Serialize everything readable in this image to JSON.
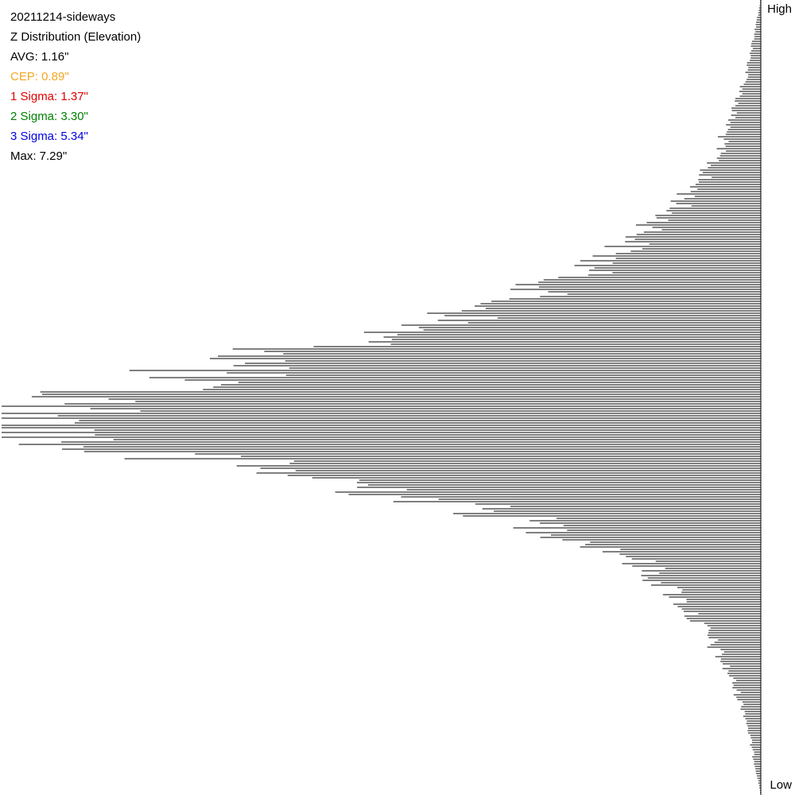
{
  "stats": {
    "title": "20211214-sideways",
    "subtitle": "Z Distribution (Elevation)",
    "avg": "AVG: 1.16\"",
    "cep": "CEP: 0.89\"",
    "sigma1": "1 Sigma: 1.37\"",
    "sigma2": "2 Sigma: 3.30\"",
    "sigma3": "3 Sigma: 5.34\"",
    "max": "Max: 7.29\""
  },
  "colors": {
    "text": "#000000",
    "cep": "#f5a623",
    "sigma1": "#e00000",
    "sigma2": "#008000",
    "sigma3": "#0000e0",
    "bars": "#000000"
  },
  "axis": {
    "top_label": "High",
    "bottom_label": "Low"
  },
  "chart_data": {
    "type": "bar",
    "orientation": "horizontal",
    "bar_direction": "extends-left-from-axis",
    "value_axis_range": [
      0,
      1
    ],
    "category_axis": "elevation (High at top, Low at bottom)",
    "profile_points": [
      {
        "pos": 0.0,
        "value": 0.0
      },
      {
        "pos": 0.05,
        "value": 0.01
      },
      {
        "pos": 0.1,
        "value": 0.02
      },
      {
        "pos": 0.15,
        "value": 0.04
      },
      {
        "pos": 0.2,
        "value": 0.06
      },
      {
        "pos": 0.25,
        "value": 0.1
      },
      {
        "pos": 0.3,
        "value": 0.16
      },
      {
        "pos": 0.35,
        "value": 0.25
      },
      {
        "pos": 0.4,
        "value": 0.4
      },
      {
        "pos": 0.45,
        "value": 0.65
      },
      {
        "pos": 0.5,
        "value": 0.9
      },
      {
        "pos": 0.53,
        "value": 1.0
      },
      {
        "pos": 0.56,
        "value": 0.9
      },
      {
        "pos": 0.6,
        "value": 0.58
      },
      {
        "pos": 0.65,
        "value": 0.33
      },
      {
        "pos": 0.7,
        "value": 0.17
      },
      {
        "pos": 0.75,
        "value": 0.11
      },
      {
        "pos": 0.8,
        "value": 0.07
      },
      {
        "pos": 0.85,
        "value": 0.04
      },
      {
        "pos": 0.9,
        "value": 0.02
      },
      {
        "pos": 0.95,
        "value": 0.01
      },
      {
        "pos": 1.0,
        "value": 0.0
      }
    ]
  }
}
